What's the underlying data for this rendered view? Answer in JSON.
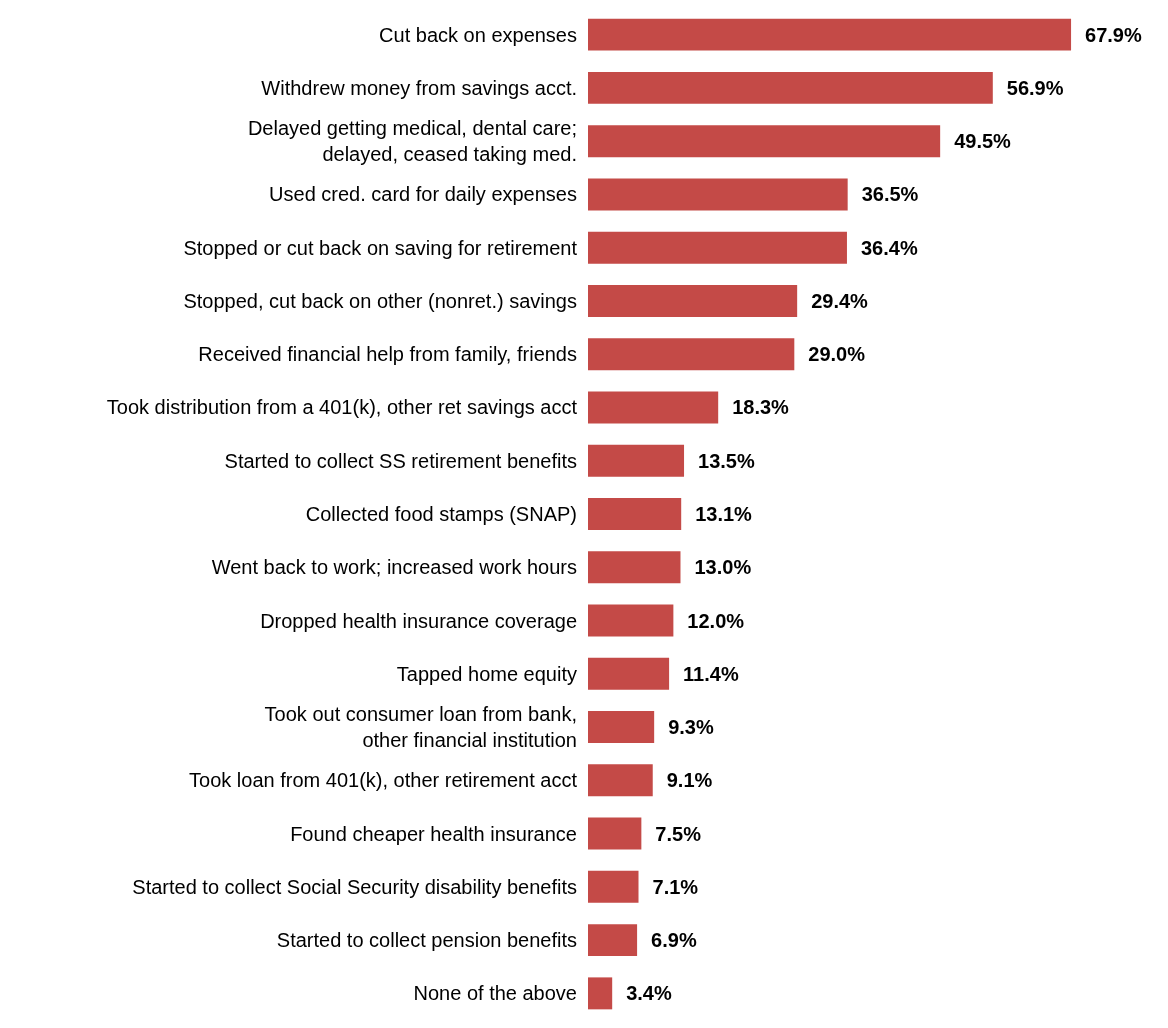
{
  "chart_data": {
    "type": "bar",
    "orientation": "horizontal",
    "categories": [
      "Cut back on expenses",
      "Withdrew money from savings acct.",
      "Delayed getting medical, dental care;\ndelayed, ceased taking med.",
      "Used cred. card for daily expenses",
      "Stopped or cut back on saving for retirement",
      "Stopped, cut back on other (nonret.) savings",
      "Received financial help from family, friends",
      "Took distribution from a 401(k), other ret savings acct",
      "Started to collect SS retirement benefits",
      "Collected food stamps (SNAP)",
      "Went back to work; increased work hours",
      "Dropped health insurance coverage",
      "Tapped home equity",
      "Took out consumer loan from bank,\nother financial institution",
      "Took loan from 401(k), other retirement acct",
      "Found cheaper health insurance",
      "Started to collect Social Security disability benefits",
      "Started to collect pension benefits",
      "None of the above"
    ],
    "values": [
      67.9,
      56.9,
      49.5,
      36.5,
      36.4,
      29.4,
      29.0,
      18.3,
      13.5,
      13.1,
      13.0,
      12.0,
      11.4,
      9.3,
      9.1,
      7.5,
      7.1,
      6.9,
      3.4
    ],
    "value_labels": [
      "67.9%",
      "56.9%",
      "49.5%",
      "36.5%",
      "36.4%",
      "29.4%",
      "29.0%",
      "18.3%",
      "13.5%",
      "13.1%",
      "13.0%",
      "12.0%",
      "11.4%",
      "9.3%",
      "9.1%",
      "7.5%",
      "7.1%",
      "6.9%",
      "3.4%"
    ],
    "color": "#c44a47",
    "grid": false
  }
}
